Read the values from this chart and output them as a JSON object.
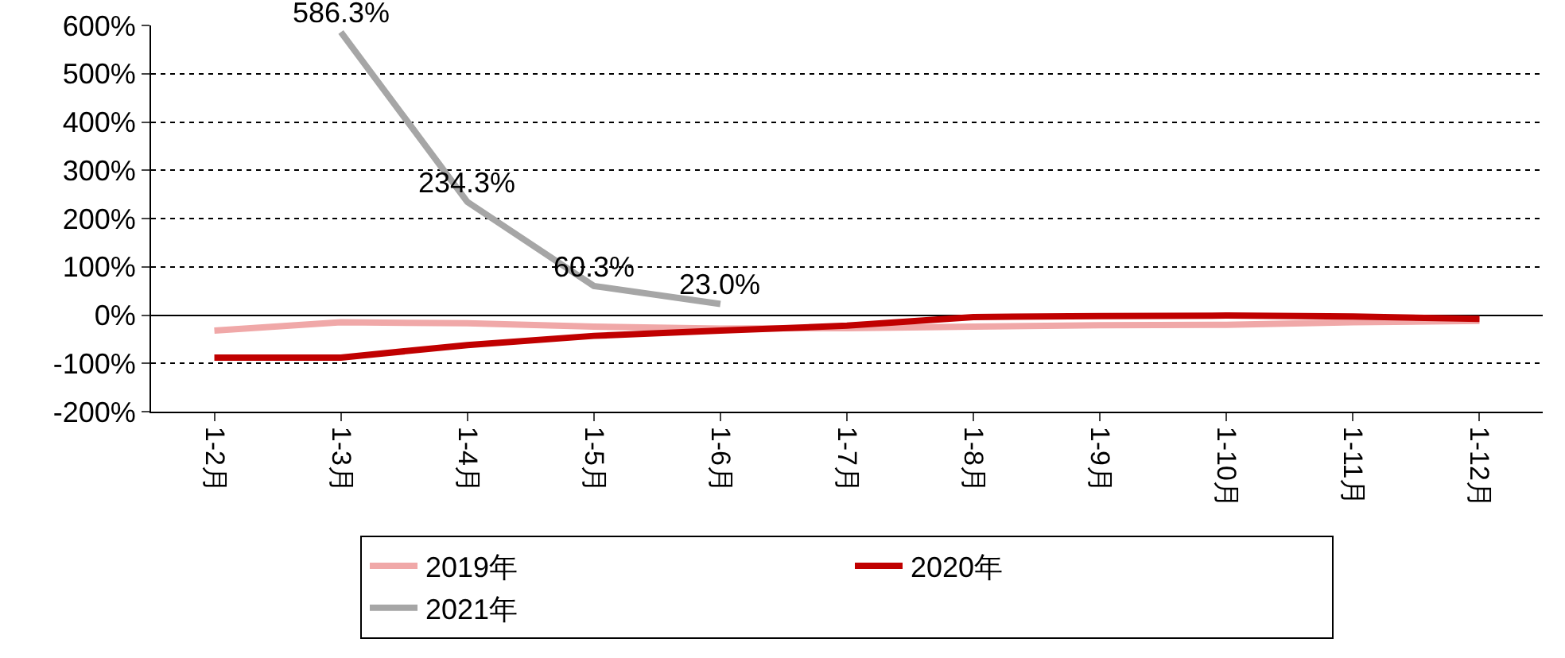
{
  "chart_data": {
    "type": "line",
    "categories": [
      "1-2月",
      "1-3月",
      "1-4月",
      "1-5月",
      "1-6月",
      "1-7月",
      "1-8月",
      "1-9月",
      "1-10月",
      "1-11月",
      "1-12月"
    ],
    "series": [
      {
        "name": "2019年",
        "color": "#f0a8a8",
        "values": [
          -32,
          -15,
          -17,
          -24,
          -28,
          -27,
          -24,
          -21,
          -20,
          -15,
          -12
        ]
      },
      {
        "name": "2020年",
        "color": "#c00000",
        "values": [
          -88,
          -88,
          -62,
          -43,
          -32,
          -22,
          -4,
          -2,
          -1,
          -3,
          -8
        ]
      },
      {
        "name": "2021年",
        "color": "#a6a6a6",
        "values": [
          null,
          586.3,
          234.3,
          60.3,
          23.0,
          null,
          null,
          null,
          null,
          null,
          null
        ],
        "value_labels": [
          null,
          "586.3%",
          "234.3%",
          "60.3%",
          "23.0%",
          null,
          null,
          null,
          null,
          null,
          null
        ]
      }
    ],
    "ylim": [
      -200,
      600
    ],
    "yticks": [
      {
        "value": -200,
        "label": "-200%"
      },
      {
        "value": -100,
        "label": "-100%"
      },
      {
        "value": 0,
        "label": "0%"
      },
      {
        "value": 100,
        "label": "100%"
      },
      {
        "value": 200,
        "label": "200%"
      },
      {
        "value": 300,
        "label": "300%"
      },
      {
        "value": 400,
        "label": "400%"
      },
      {
        "value": 500,
        "label": "500%"
      },
      {
        "value": 600,
        "label": "600%"
      }
    ],
    "grid": "y",
    "legend": "bottom",
    "marker": "none",
    "line_style": "solid"
  }
}
